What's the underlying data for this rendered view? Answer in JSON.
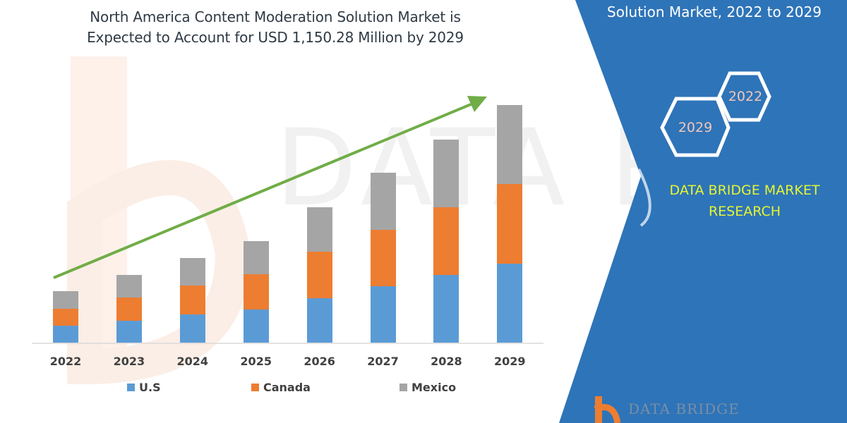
{
  "title": {
    "line1": "North America Content Moderation Solution Market is",
    "line2": "Expected to Account for USD 1,150.28 Million by 2029"
  },
  "side_panel": {
    "title": "Solution Market, 2022 to 2029",
    "hex_start": "2022",
    "hex_end": "2029",
    "brand_line1": "DATA BRIDGE MARKET",
    "brand_line2": "RESEARCH",
    "logo_text": "DATA BRIDGE",
    "colors": {
      "panel": "#2e74b8",
      "brand_text": "#e6f531",
      "hex_text": "#f2c6b8"
    }
  },
  "legend": [
    {
      "label": "U.S",
      "color": "#5b9bd5"
    },
    {
      "label": "Canada",
      "color": "#ed7d31"
    },
    {
      "label": "Mexico",
      "color": "#a5a5a5"
    }
  ],
  "chart_data": {
    "type": "bar",
    "stacked": true,
    "title": "North America Content Moderation Solution Market is Expected to Account for USD 1,150.28 Million by 2029",
    "xlabel": "",
    "ylabel": "",
    "categories": [
      "2022",
      "2023",
      "2024",
      "2025",
      "2026",
      "2027",
      "2028",
      "2029"
    ],
    "series": [
      {
        "name": "U.S",
        "color": "#5b9bd5",
        "values": [
          24,
          31,
          40,
          47,
          63,
          80,
          96,
          112
        ]
      },
      {
        "name": "Canada",
        "color": "#ed7d31",
        "values": [
          24,
          33,
          41,
          50,
          66,
          80,
          96,
          113
        ]
      },
      {
        "name": "Mexico",
        "color": "#a5a5a5",
        "values": [
          25,
          32,
          39,
          47,
          63,
          81,
          96,
          112
        ]
      }
    ],
    "units": "relative bar height (px, unlabeled axis)",
    "grid": false,
    "y_axis_visible": false,
    "legend_position": "bottom",
    "annotations": [
      "Green upward trend arrow from 2022 to 2029"
    ]
  }
}
